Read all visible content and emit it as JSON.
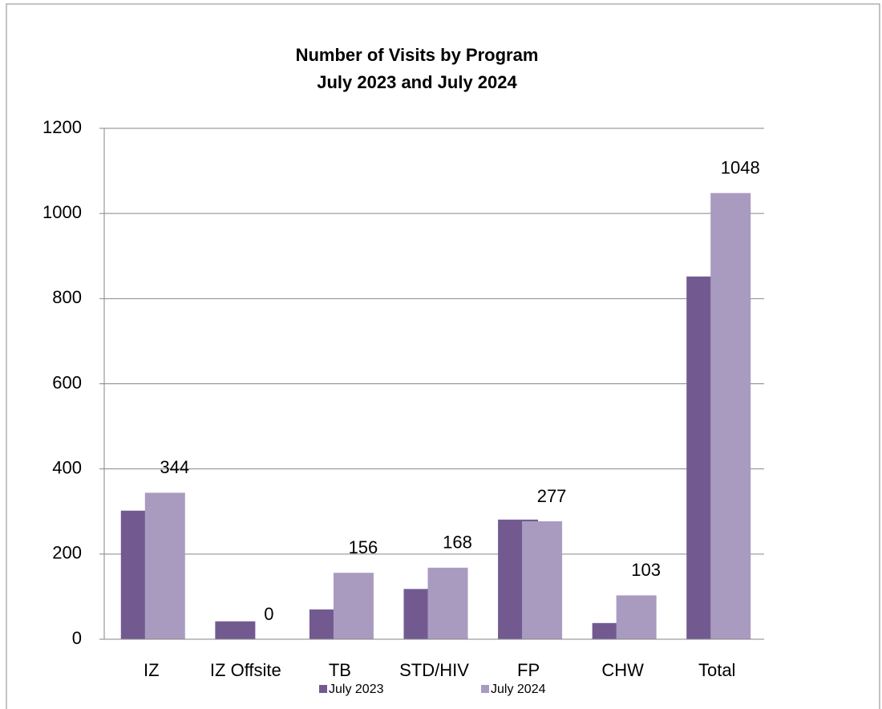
{
  "chart_data": {
    "type": "bar",
    "title": "Number of Visits by Program",
    "subtitle": "July 2023 and July 2024",
    "categories": [
      "IZ",
      "IZ Offsite",
      "TB",
      "STD/HIV",
      "FP",
      "CHW",
      "Total"
    ],
    "series": [
      {
        "name": "July 2023",
        "color": "#725a91",
        "values": [
          302,
          42,
          70,
          118,
          281,
          38,
          852
        ]
      },
      {
        "name": "July 2024",
        "color": "#a99bc0",
        "values": [
          344,
          0,
          156,
          168,
          277,
          103,
          1048
        ]
      }
    ],
    "ylim": [
      0,
      1200
    ],
    "yticks": [
      0,
      200,
      400,
      600,
      800,
      1000,
      1200
    ],
    "grid": true,
    "legend": "bottom"
  }
}
